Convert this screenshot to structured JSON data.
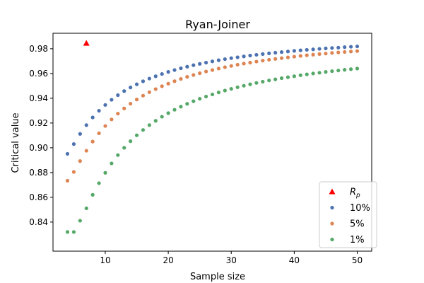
{
  "chart_data": {
    "type": "scatter",
    "title": "Ryan-Joiner",
    "xlabel": "Sample size",
    "ylabel": "Critical value",
    "xlim": [
      1.7,
      52.3
    ],
    "ylim": [
      0.8165,
      0.9925
    ],
    "xticks": [
      10,
      20,
      30,
      40,
      50
    ],
    "yticks": [
      0.84,
      0.86,
      0.88,
      0.9,
      0.92,
      0.94,
      0.96,
      0.98
    ],
    "ytick_labels": [
      "0.84",
      "0.86",
      "0.88",
      "0.90",
      "0.92",
      "0.94",
      "0.96",
      "0.98"
    ],
    "grid": false,
    "legend_position": "lower right",
    "legend": [
      {
        "label": "R",
        "subscript": "p",
        "color": "#ff0000",
        "marker": "triangle"
      },
      {
        "label": "10%",
        "color": "#4c72b0",
        "marker": "circle"
      },
      {
        "label": "5%",
        "color": "#dd8452",
        "marker": "circle"
      },
      {
        "label": "1%",
        "color": "#55a868",
        "marker": "circle"
      }
    ],
    "rp_point": {
      "x": 7,
      "y": 0.9845
    },
    "series": [
      {
        "name": "10%",
        "color": "#4c72b0",
        "x": [
          4,
          5,
          6,
          7,
          8,
          9,
          10,
          11,
          12,
          13,
          14,
          15,
          16,
          17,
          18,
          19,
          20,
          21,
          22,
          23,
          24,
          25,
          26,
          27,
          28,
          29,
          30,
          31,
          32,
          33,
          34,
          35,
          36,
          37,
          38,
          39,
          40,
          41,
          42,
          43,
          44,
          45,
          46,
          47,
          48,
          49,
          50
        ],
        "y": [
          0.8951,
          0.903,
          0.9112,
          0.9183,
          0.9245,
          0.9299,
          0.9346,
          0.9388,
          0.9425,
          0.9458,
          0.9487,
          0.9513,
          0.9537,
          0.9559,
          0.9578,
          0.9596,
          0.9613,
          0.9628,
          0.9642,
          0.9655,
          0.9667,
          0.9678,
          0.9688,
          0.9698,
          0.9707,
          0.9716,
          0.9724,
          0.9731,
          0.9738,
          0.9745,
          0.9751,
          0.9757,
          0.9763,
          0.9768,
          0.9773,
          0.9778,
          0.9783,
          0.9787,
          0.9791,
          0.9795,
          0.9799,
          0.9803,
          0.9806,
          0.9809,
          0.9813,
          0.9816,
          0.9819
        ]
      },
      {
        "name": "5%",
        "color": "#dd8452",
        "x": [
          4,
          5,
          6,
          7,
          8,
          9,
          10,
          11,
          12,
          13,
          14,
          15,
          16,
          17,
          18,
          19,
          20,
          21,
          22,
          23,
          24,
          25,
          26,
          27,
          28,
          29,
          30,
          31,
          32,
          33,
          34,
          35,
          36,
          37,
          38,
          39,
          40,
          41,
          42,
          43,
          44,
          45,
          46,
          47,
          48,
          49,
          50
        ],
        "y": [
          0.8734,
          0.8805,
          0.8893,
          0.8976,
          0.905,
          0.9117,
          0.9176,
          0.9229,
          0.9276,
          0.9318,
          0.9356,
          0.939,
          0.9421,
          0.9449,
          0.9474,
          0.9497,
          0.9518,
          0.9538,
          0.9556,
          0.9573,
          0.9588,
          0.9602,
          0.9616,
          0.9628,
          0.964,
          0.9651,
          0.9661,
          0.9671,
          0.968,
          0.9688,
          0.9696,
          0.9704,
          0.9711,
          0.9718,
          0.9724,
          0.973,
          0.9736,
          0.9742,
          0.9747,
          0.9752,
          0.9757,
          0.9761,
          0.9766,
          0.977,
          0.9774,
          0.9778,
          0.9781
        ]
      },
      {
        "name": "1%",
        "color": "#55a868",
        "x": [
          4,
          5,
          6,
          7,
          8,
          9,
          10,
          11,
          12,
          13,
          14,
          15,
          16,
          17,
          18,
          19,
          20,
          21,
          22,
          23,
          24,
          25,
          26,
          27,
          28,
          29,
          30,
          31,
          32,
          33,
          34,
          35,
          36,
          37,
          38,
          39,
          40,
          41,
          42,
          43,
          44,
          45,
          46,
          47,
          48,
          49,
          50
        ],
        "y": [
          0.832,
          0.832,
          0.8411,
          0.8511,
          0.862,
          0.8714,
          0.8798,
          0.8874,
          0.8941,
          0.9,
          0.9053,
          0.9101,
          0.9144,
          0.9183,
          0.9218,
          0.9251,
          0.928,
          0.9307,
          0.9332,
          0.9355,
          0.9376,
          0.9396,
          0.9414,
          0.9431,
          0.9447,
          0.9462,
          0.9476,
          0.9489,
          0.9501,
          0.9513,
          0.9524,
          0.9534,
          0.9544,
          0.9553,
          0.9562,
          0.957,
          0.9578,
          0.9586,
          0.9593,
          0.96,
          0.9606,
          0.9613,
          0.9619,
          0.9624,
          0.963,
          0.9635,
          0.964
        ]
      }
    ]
  }
}
